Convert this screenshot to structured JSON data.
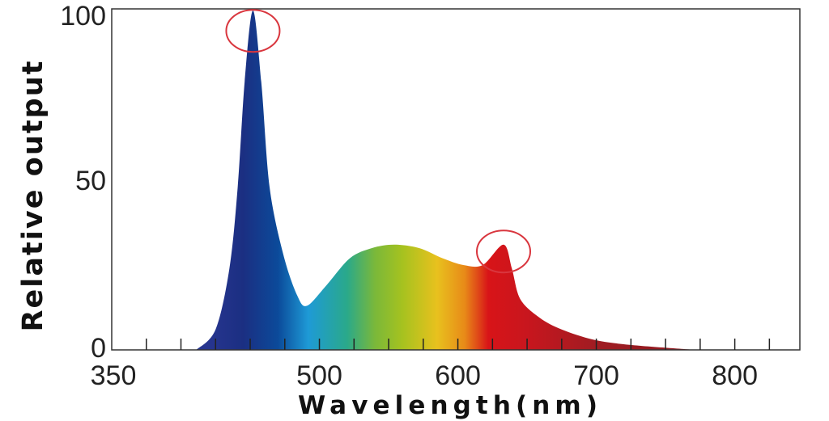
{
  "chart_data": {
    "type": "area",
    "xlabel": "Wavelength(nm)",
    "ylabel": "Relative output",
    "xlim": [
      350,
      847
    ],
    "ylim": [
      0,
      100
    ],
    "x_tick_labels": [
      "350",
      "500",
      "600",
      "700",
      "800"
    ],
    "x_tick_values": [
      350,
      500,
      600,
      700,
      800
    ],
    "x_minor_tick_step": 25,
    "y_tick_labels": [
      "0",
      "50",
      "100"
    ],
    "y_tick_values": [
      0,
      50,
      100
    ],
    "grid": false,
    "fill": "spectral color gradient",
    "x": [
      411,
      425,
      435,
      441,
      446,
      452,
      458,
      464,
      474,
      484,
      491,
      505,
      522,
      538,
      554,
      572,
      589,
      604,
      618,
      633,
      639,
      645,
      659,
      675,
      698,
      724,
      772
    ],
    "y": [
      0,
      6,
      24,
      48,
      79,
      100,
      79,
      48,
      28,
      16,
      13,
      19,
      27,
      30,
      31,
      30,
      27,
      25,
      25,
      31,
      24,
      15,
      9.5,
      6,
      3,
      1.5,
      0
    ],
    "gradient": [
      {
        "nm": 420,
        "color": "#27358f"
      },
      {
        "nm": 445,
        "color": "#1b2f82"
      },
      {
        "nm": 470,
        "color": "#0b4a9a"
      },
      {
        "nm": 492,
        "color": "#1e9ad6"
      },
      {
        "nm": 520,
        "color": "#2aa98a"
      },
      {
        "nm": 540,
        "color": "#7ab83a"
      },
      {
        "nm": 560,
        "color": "#a6c21f"
      },
      {
        "nm": 585,
        "color": "#e8c11e"
      },
      {
        "nm": 605,
        "color": "#e88a18"
      },
      {
        "nm": 622,
        "color": "#d81418"
      },
      {
        "nm": 650,
        "color": "#c8161e"
      },
      {
        "nm": 700,
        "color": "#a01c22"
      },
      {
        "nm": 780,
        "color": "#8a1a20"
      }
    ],
    "annotations": [
      {
        "type": "circle",
        "x": 452,
        "y": 94,
        "color": "#d9363e"
      },
      {
        "type": "circle",
        "x": 633,
        "y": 29,
        "color": "#d9363e"
      }
    ],
    "frame_color": "#333333"
  }
}
